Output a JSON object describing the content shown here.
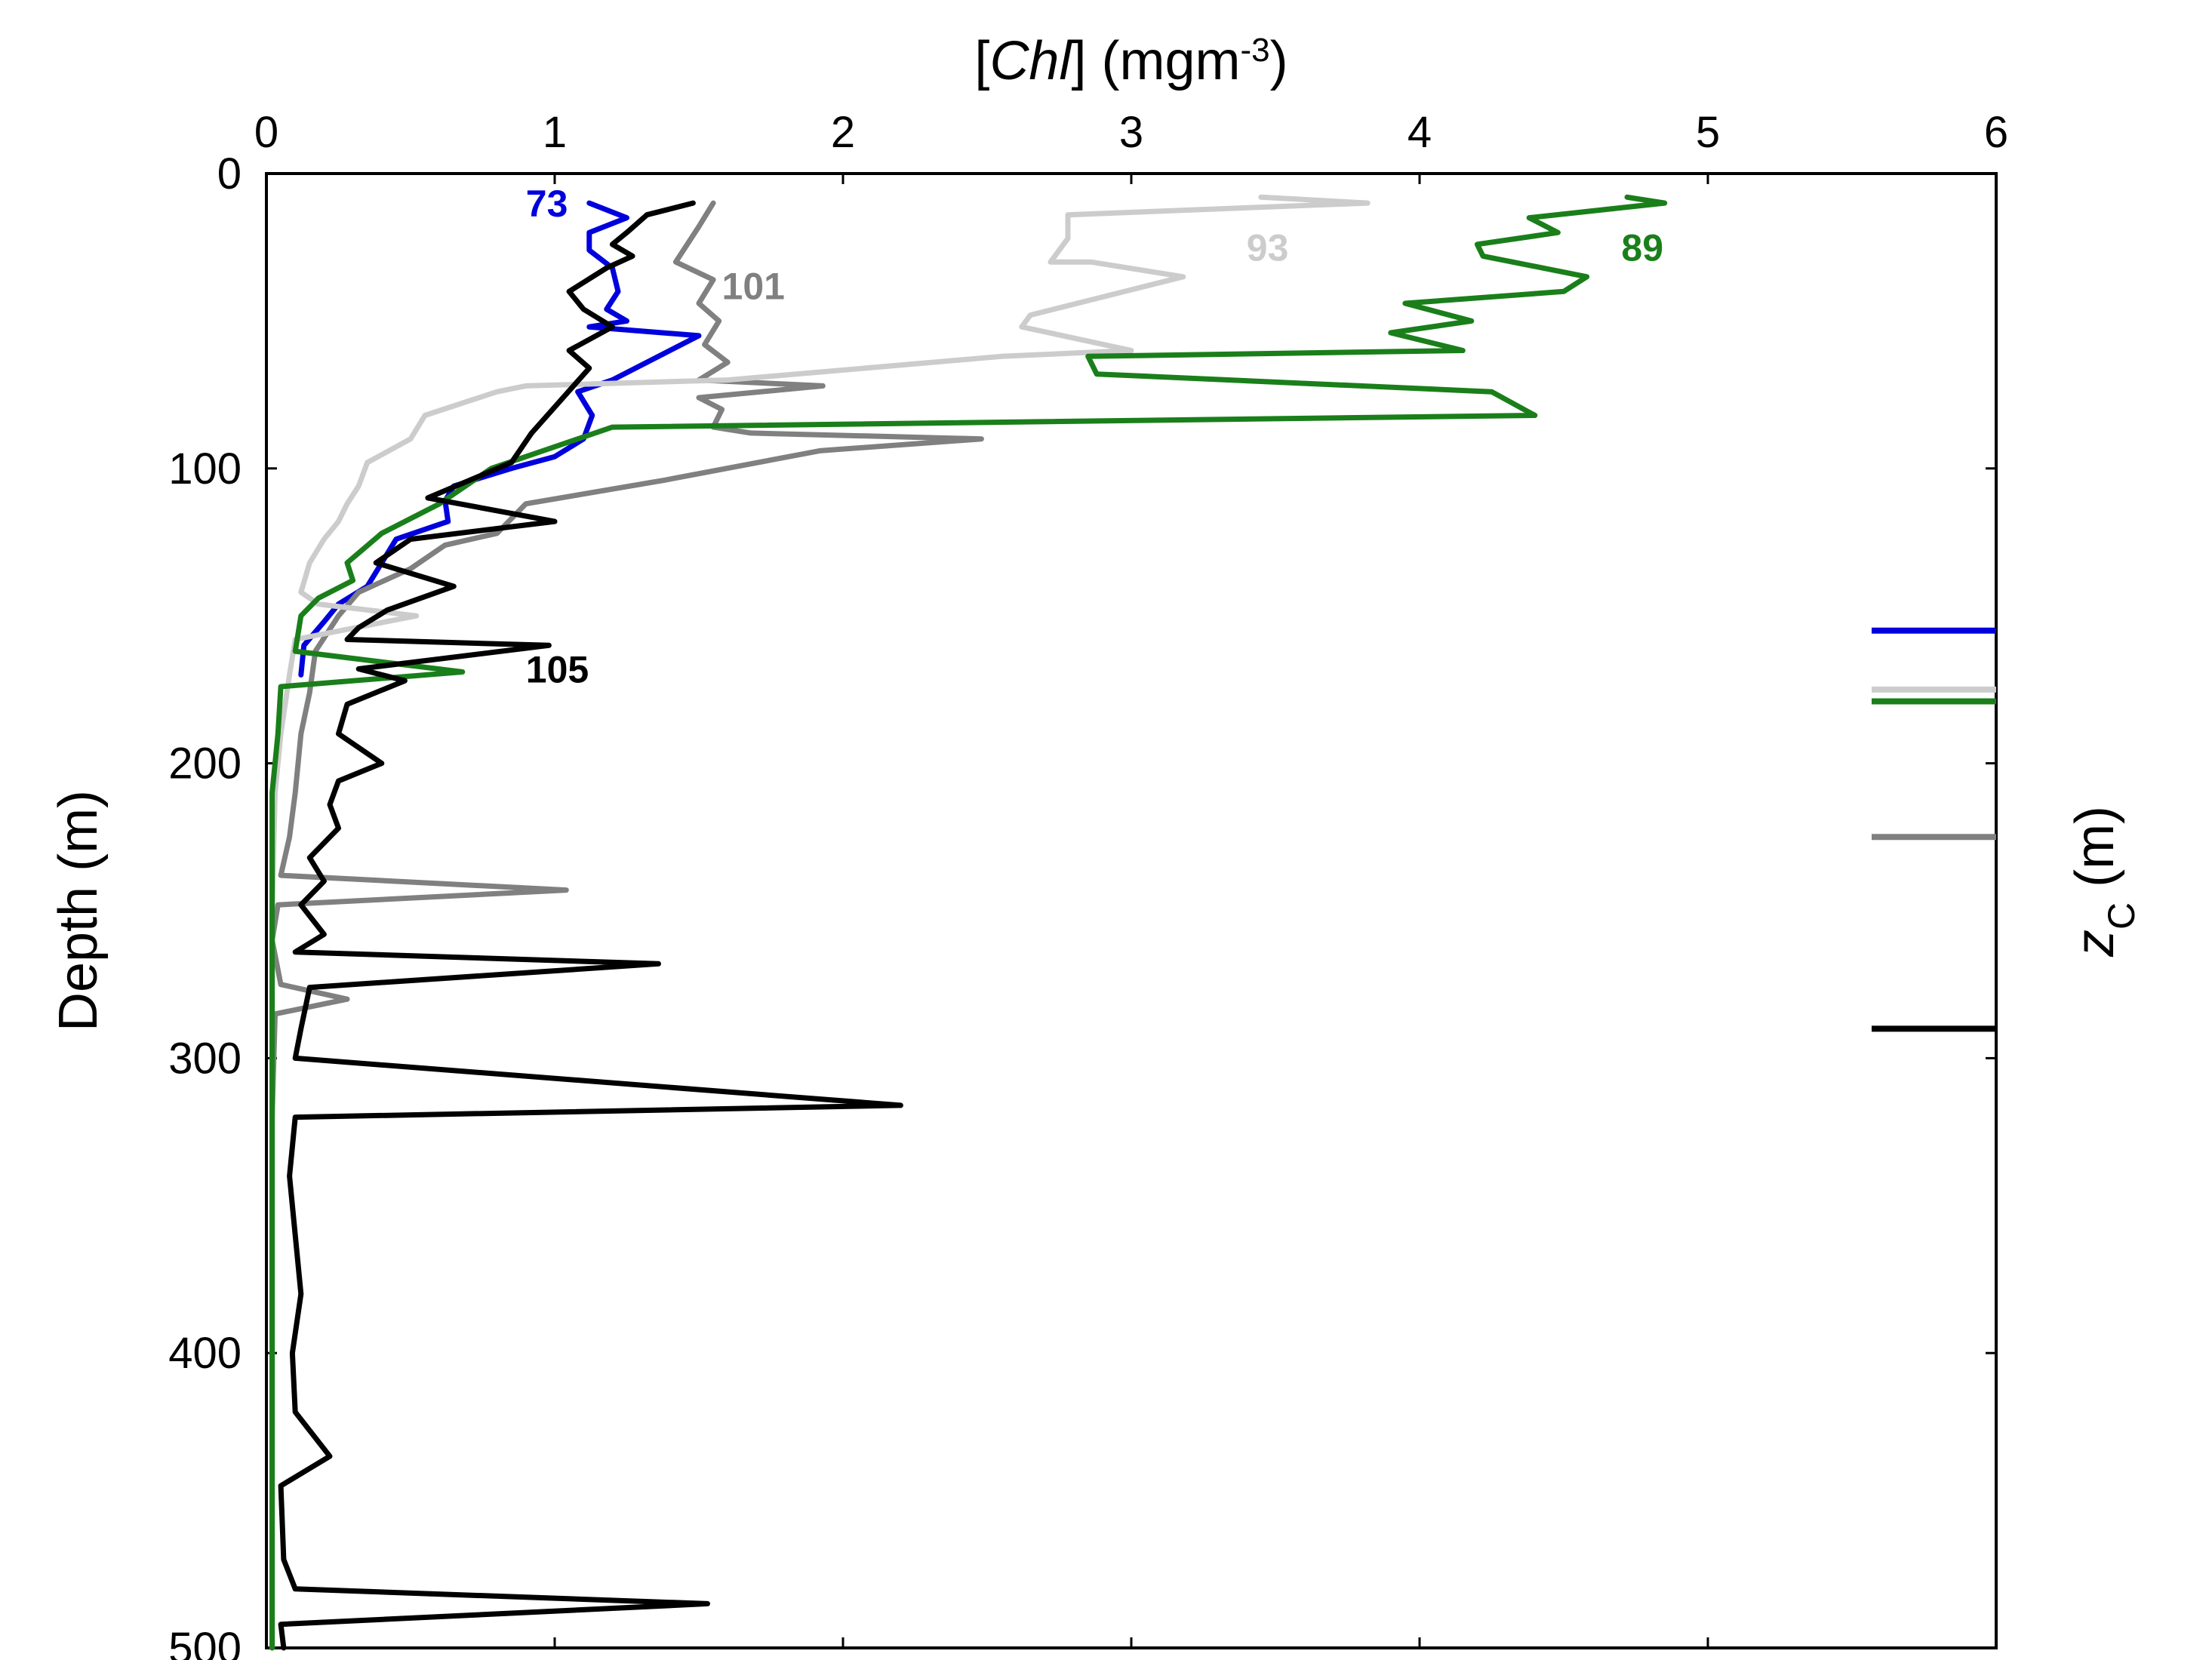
{
  "chart_data": {
    "type": "line",
    "title": "",
    "xlabel": "[Chl]  (mgm-3)",
    "xlabel_parts": {
      "open": "[",
      "italic": "Chl",
      "close": "]  (mgm",
      "sup": "-3",
      "end": ")"
    },
    "ylabel": "Depth  (m)",
    "right_label": "zC  (m)",
    "right_label_parts": {
      "main": "z",
      "sub": "C",
      "unit": "  (m)"
    },
    "xlim": [
      0,
      6
    ],
    "ylim": [
      0,
      500
    ],
    "y_inverted": true,
    "x_axis_position": "top",
    "grid": false,
    "xticks": [
      "0",
      "1",
      "2",
      "3",
      "4",
      "5",
      "6"
    ],
    "yticks": [
      "0",
      "100",
      "200",
      "300",
      "400",
      "500"
    ],
    "series": [
      {
        "name": "73",
        "color": "#0000dd",
        "zc": 155,
        "points": [
          [
            1.12,
            10
          ],
          [
            1.25,
            15
          ],
          [
            1.12,
            20
          ],
          [
            1.12,
            26
          ],
          [
            1.2,
            32
          ],
          [
            1.22,
            40
          ],
          [
            1.18,
            46
          ],
          [
            1.25,
            50
          ],
          [
            1.12,
            52
          ],
          [
            1.5,
            55
          ],
          [
            1.2,
            70
          ],
          [
            1.08,
            74
          ],
          [
            1.13,
            82
          ],
          [
            1.1,
            90
          ],
          [
            1.0,
            96
          ],
          [
            0.85,
            100
          ],
          [
            0.65,
            106
          ],
          [
            0.62,
            111
          ],
          [
            0.63,
            118
          ],
          [
            0.45,
            124
          ],
          [
            0.4,
            132
          ],
          [
            0.35,
            140
          ],
          [
            0.25,
            146
          ],
          [
            0.2,
            152
          ],
          [
            0.13,
            160
          ],
          [
            0.12,
            170
          ]
        ]
      },
      {
        "name": "101",
        "color": "#808080",
        "zc": 225,
        "points": [
          [
            1.55,
            10
          ],
          [
            1.5,
            18
          ],
          [
            1.42,
            30
          ],
          [
            1.55,
            36
          ],
          [
            1.5,
            44
          ],
          [
            1.57,
            50
          ],
          [
            1.52,
            58
          ],
          [
            1.6,
            64
          ],
          [
            1.5,
            70
          ],
          [
            1.93,
            72
          ],
          [
            1.5,
            76
          ],
          [
            1.58,
            80
          ],
          [
            1.55,
            86
          ],
          [
            1.68,
            88
          ],
          [
            2.48,
            90
          ],
          [
            1.92,
            94
          ],
          [
            1.38,
            104
          ],
          [
            0.9,
            112
          ],
          [
            0.8,
            122
          ],
          [
            0.62,
            126
          ],
          [
            0.5,
            134
          ],
          [
            0.32,
            142
          ],
          [
            0.25,
            150
          ],
          [
            0.17,
            162
          ],
          [
            0.15,
            176
          ],
          [
            0.12,
            190
          ],
          [
            0.1,
            210
          ],
          [
            0.08,
            225
          ],
          [
            0.05,
            238
          ],
          [
            1.04,
            243
          ],
          [
            0.04,
            248
          ],
          [
            0.02,
            260
          ],
          [
            0.05,
            275
          ],
          [
            0.28,
            280
          ],
          [
            0.03,
            285
          ],
          [
            0.02,
            320
          ],
          [
            0.02,
            400
          ],
          [
            0.02,
            500
          ]
        ]
      },
      {
        "name": "93",
        "color": "#cccccc",
        "zc": 175,
        "points": [
          [
            3.45,
            8
          ],
          [
            3.82,
            10
          ],
          [
            2.78,
            14
          ],
          [
            2.78,
            22
          ],
          [
            2.72,
            30
          ],
          [
            2.86,
            30
          ],
          [
            3.18,
            35
          ],
          [
            2.65,
            48
          ],
          [
            2.62,
            52
          ],
          [
            3.0,
            60
          ],
          [
            2.55,
            62
          ],
          [
            1.6,
            70
          ],
          [
            0.9,
            72
          ],
          [
            0.8,
            74
          ],
          [
            0.55,
            82
          ],
          [
            0.5,
            90
          ],
          [
            0.35,
            98
          ],
          [
            0.32,
            106
          ],
          [
            0.28,
            112
          ],
          [
            0.25,
            118
          ],
          [
            0.2,
            124
          ],
          [
            0.15,
            132
          ],
          [
            0.12,
            142
          ],
          [
            0.18,
            146
          ],
          [
            0.52,
            150
          ],
          [
            0.1,
            158
          ],
          [
            0.08,
            170
          ],
          [
            0.05,
            190
          ],
          [
            0.03,
            210
          ],
          [
            0.02,
            250
          ],
          [
            0.02,
            300
          ],
          [
            0.02,
            500
          ]
        ]
      },
      {
        "name": "89",
        "color": "#1a7f1a",
        "zc": 179,
        "points": [
          [
            4.72,
            8
          ],
          [
            4.85,
            10
          ],
          [
            4.38,
            15
          ],
          [
            4.48,
            20
          ],
          [
            4.2,
            24
          ],
          [
            4.22,
            28
          ],
          [
            4.58,
            35
          ],
          [
            4.5,
            40
          ],
          [
            3.95,
            44
          ],
          [
            4.18,
            50
          ],
          [
            3.9,
            54
          ],
          [
            4.15,
            60
          ],
          [
            2.85,
            62
          ],
          [
            2.88,
            68
          ],
          [
            4.25,
            74
          ],
          [
            4.4,
            82
          ],
          [
            1.2,
            86
          ],
          [
            0.78,
            100
          ],
          [
            0.6,
            112
          ],
          [
            0.4,
            122
          ],
          [
            0.28,
            132
          ],
          [
            0.3,
            138
          ],
          [
            0.18,
            144
          ],
          [
            0.12,
            150
          ],
          [
            0.1,
            162
          ],
          [
            0.68,
            169
          ],
          [
            0.05,
            174
          ],
          [
            0.04,
            190
          ],
          [
            0.02,
            210
          ],
          [
            0.02,
            250
          ],
          [
            0.02,
            300
          ],
          [
            0.02,
            500
          ]
        ]
      },
      {
        "name": "105",
        "color": "#000000",
        "zc": 290,
        "points": [
          [
            1.48,
            10
          ],
          [
            1.32,
            14
          ],
          [
            1.25,
            20
          ],
          [
            1.2,
            24
          ],
          [
            1.27,
            28
          ],
          [
            1.18,
            32
          ],
          [
            1.05,
            40
          ],
          [
            1.1,
            46
          ],
          [
            1.2,
            52
          ],
          [
            1.05,
            60
          ],
          [
            1.12,
            66
          ],
          [
            0.92,
            88
          ],
          [
            0.85,
            98
          ],
          [
            0.56,
            110
          ],
          [
            1.0,
            118
          ],
          [
            0.5,
            124
          ],
          [
            0.38,
            132
          ],
          [
            0.65,
            140
          ],
          [
            0.42,
            148
          ],
          [
            0.32,
            154
          ],
          [
            0.28,
            158
          ],
          [
            0.98,
            160
          ],
          [
            0.32,
            168
          ],
          [
            0.48,
            172
          ],
          [
            0.28,
            180
          ],
          [
            0.25,
            190
          ],
          [
            0.4,
            200
          ],
          [
            0.25,
            206
          ],
          [
            0.22,
            214
          ],
          [
            0.25,
            222
          ],
          [
            0.15,
            232
          ],
          [
            0.2,
            240
          ],
          [
            0.12,
            248
          ],
          [
            0.2,
            258
          ],
          [
            0.1,
            264
          ],
          [
            1.36,
            268
          ],
          [
            0.15,
            276
          ],
          [
            0.12,
            290
          ],
          [
            0.1,
            300
          ],
          [
            2.2,
            316
          ],
          [
            0.1,
            320
          ],
          [
            0.08,
            340
          ],
          [
            0.1,
            360
          ],
          [
            0.12,
            380
          ],
          [
            0.09,
            400
          ],
          [
            0.1,
            420
          ],
          [
            0.22,
            435
          ],
          [
            0.05,
            445
          ],
          [
            0.06,
            470
          ],
          [
            0.1,
            480
          ],
          [
            1.53,
            485
          ],
          [
            0.05,
            492
          ],
          [
            0.06,
            500
          ]
        ]
      }
    ],
    "annotations": [
      {
        "text": "73",
        "series": "73",
        "x": 0.9,
        "y": 10
      },
      {
        "text": "101",
        "series": "101",
        "x": 1.58,
        "y": 38
      },
      {
        "text": "93",
        "series": "93",
        "x": 3.4,
        "y": 25
      },
      {
        "text": "89",
        "series": "89",
        "x": 4.7,
        "y": 25
      },
      {
        "text": "105",
        "series": "105",
        "x": 0.9,
        "y": 168
      }
    ]
  }
}
